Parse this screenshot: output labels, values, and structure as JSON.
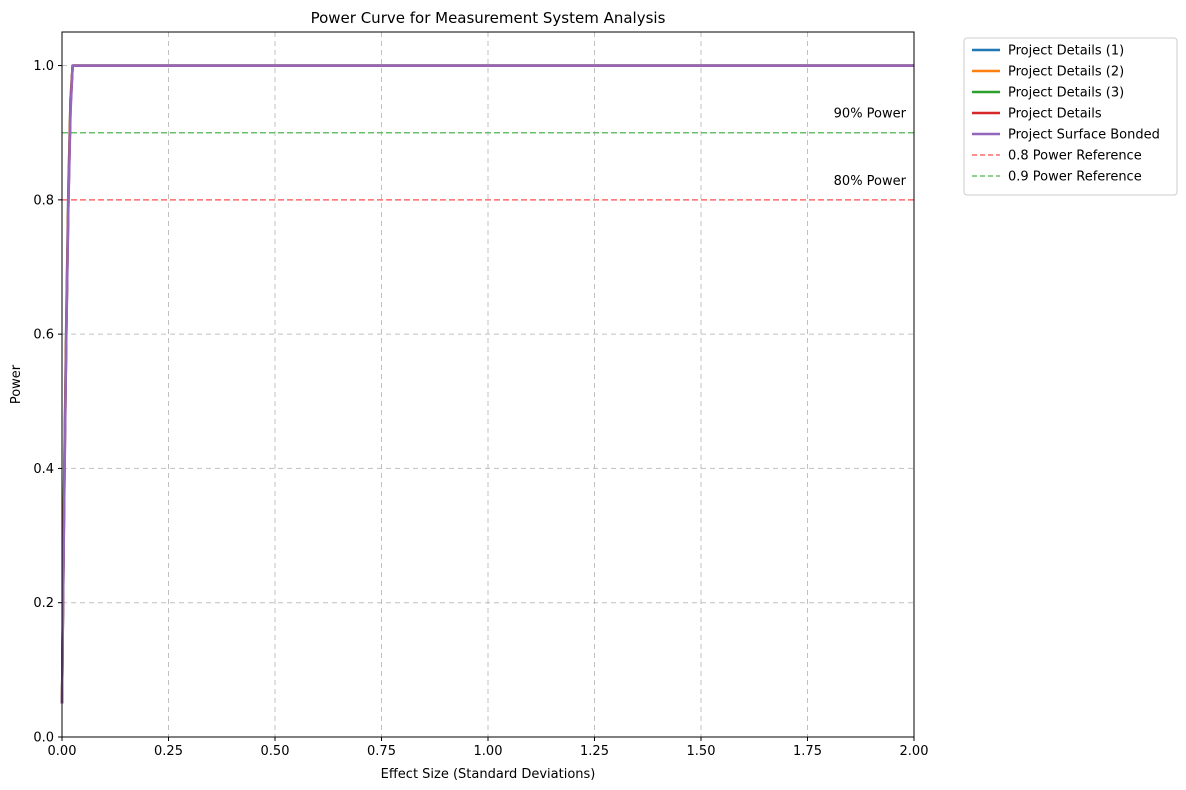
{
  "chart_data": {
    "type": "line",
    "title": "Power Curve for Measurement System Analysis",
    "xlabel": "Effect Size (Standard Deviations)",
    "ylabel": "Power",
    "xlim": [
      0,
      2
    ],
    "ylim": [
      0,
      1.05
    ],
    "xticks": [
      "0.00",
      "0.25",
      "0.50",
      "0.75",
      "1.00",
      "1.25",
      "1.50",
      "1.75",
      "2.00"
    ],
    "yticks": [
      "0.0",
      "0.2",
      "0.4",
      "0.6",
      "0.8",
      "1.0"
    ],
    "grid": true,
    "legend_position": "outside-top-right",
    "series": [
      {
        "name": "Project Details (1)",
        "color": "#1f77b4",
        "x": [
          0.0,
          0.005,
          0.01,
          0.015,
          0.02,
          0.025,
          0.05,
          0.1,
          0.5,
          1.0,
          1.5,
          2.0
        ],
        "y": [
          0.05,
          0.38,
          0.62,
          0.82,
          0.95,
          1.0,
          1.0,
          1.0,
          1.0,
          1.0,
          1.0,
          1.0
        ]
      },
      {
        "name": "Project Details (2)",
        "color": "#ff7f0e",
        "x": [
          0.0,
          0.005,
          0.01,
          0.015,
          0.02,
          0.025,
          0.05,
          0.1,
          0.5,
          1.0,
          1.5,
          2.0
        ],
        "y": [
          0.05,
          0.37,
          0.61,
          0.81,
          0.95,
          1.0,
          1.0,
          1.0,
          1.0,
          1.0,
          1.0,
          1.0
        ]
      },
      {
        "name": "Project Details (3)",
        "color": "#2ca02c",
        "x": [
          0.0,
          0.005,
          0.01,
          0.015,
          0.02,
          0.025,
          0.05,
          0.1,
          0.5,
          1.0,
          1.5,
          2.0
        ],
        "y": [
          0.05,
          0.36,
          0.6,
          0.8,
          0.94,
          1.0,
          1.0,
          1.0,
          1.0,
          1.0,
          1.0,
          1.0
        ]
      },
      {
        "name": "Project Details",
        "color": "#d62728",
        "x": [
          0.0,
          0.005,
          0.01,
          0.015,
          0.02,
          0.025,
          0.05,
          0.1,
          0.5,
          1.0,
          1.5,
          2.0
        ],
        "y": [
          0.05,
          0.35,
          0.6,
          0.8,
          0.94,
          1.0,
          1.0,
          1.0,
          1.0,
          1.0,
          1.0,
          1.0
        ]
      },
      {
        "name": "Project Surface Bonded",
        "color": "#9467bd",
        "x": [
          0.0,
          0.005,
          0.01,
          0.015,
          0.02,
          0.025,
          0.05,
          0.1,
          0.5,
          1.0,
          1.5,
          2.0
        ],
        "y": [
          0.05,
          0.34,
          0.59,
          0.79,
          0.93,
          1.0,
          1.0,
          1.0,
          1.0,
          1.0,
          1.0,
          1.0
        ]
      }
    ],
    "reference_lines": [
      {
        "name": "0.8 Power Reference",
        "y": 0.8,
        "color": "#ff6b6b",
        "style": "dashed",
        "annotation": "80% Power"
      },
      {
        "name": "0.9 Power Reference",
        "y": 0.9,
        "color": "#6abf6a",
        "style": "dashed",
        "annotation": "90% Power"
      }
    ]
  }
}
